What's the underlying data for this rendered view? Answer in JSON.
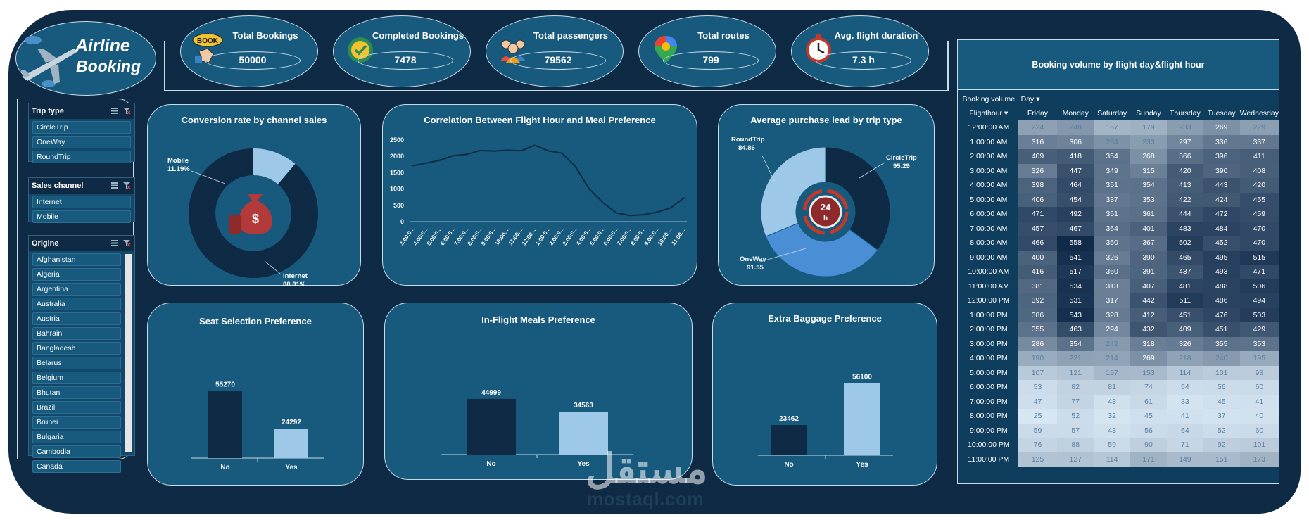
{
  "title": {
    "line1": "Airline",
    "line2": "Booking"
  },
  "logo_badge": "BOOK",
  "kpis": [
    {
      "label": "Total Bookings",
      "value": "50000",
      "icon": "book-hand-icon"
    },
    {
      "label": "Completed Bookings",
      "value": "7478",
      "icon": "check-badge-icon"
    },
    {
      "label": "Total passengers",
      "value": "79562",
      "icon": "people-icon"
    },
    {
      "label": "Total routes",
      "value": "799",
      "icon": "map-pin-icon"
    },
    {
      "label": "Avg. flight duration",
      "value": "7.3  h",
      "icon": "clock-icon"
    }
  ],
  "slicers": {
    "trip_type": {
      "header": "Trip type",
      "items": [
        "CircleTrip",
        "OneWay",
        "RoundTrip"
      ]
    },
    "sales_channel": {
      "header": "Sales channel",
      "items": [
        "Internet",
        "Mobile"
      ]
    },
    "origine": {
      "header": "Origine",
      "items": [
        "Afghanistan",
        "Algeria",
        "Argentina",
        "Australia",
        "Austria",
        "Bahrain",
        "Bangladesh",
        "Belarus",
        "Belgium",
        "Bhutan",
        "Brazil",
        "Brunei",
        "Bulgaria",
        "Cambodia",
        "Canada"
      ]
    }
  },
  "colors": {
    "frame": "#0e2a45",
    "panel": "#175a7d",
    "dark": "#0e2a45",
    "light": "#9ec8e8",
    "mid": "#4a8fd6",
    "accent": "#c0392b"
  },
  "watermark": {
    "arabic": "مستقل",
    "latin": "mostaql.com"
  },
  "chart_data": [
    {
      "type": "pie",
      "title": "Conversion rate by channel sales",
      "categories": [
        "Mobile",
        "Internet"
      ],
      "values": [
        11.19,
        88.81
      ],
      "labels": [
        "11.19%",
        "88.81%"
      ],
      "colors": [
        "#9ec8e8",
        "#0e2a45"
      ]
    },
    {
      "type": "line",
      "title": "Correlation Between Flight Hour and Meal Preference",
      "x": [
        "3:00:0...",
        "4:00:0...",
        "5:00:0...",
        "6:00:0...",
        "7:00:0...",
        "8:00:0...",
        "9:00:0...",
        "10:00:...",
        "11:00:...",
        "12:00:...",
        "1:00:0...",
        "2:00:0...",
        "3:00:0...",
        "4:00:0...",
        "5:00:0...",
        "6:00:0...",
        "7:00:0...",
        "8:00:0...",
        "9:00:0...",
        "10:00:...",
        "11:00:..."
      ],
      "values": [
        1710,
        1790,
        1880,
        2020,
        2060,
        2180,
        2160,
        2190,
        2170,
        2340,
        2170,
        2100,
        1690,
        1010,
        590,
        270,
        190,
        210,
        290,
        420,
        730
      ],
      "ylim": [
        0,
        2500
      ],
      "yticks": [
        0,
        500,
        1000,
        1500,
        2000,
        2500
      ]
    },
    {
      "type": "pie",
      "title": "Average purchase lead by trip type",
      "categories": [
        "CircleTrip",
        "OneWay",
        "RoundTrip"
      ],
      "values": [
        95.29,
        91.55,
        84.86
      ],
      "labels": [
        "95.29",
        "91.55",
        "84.86"
      ],
      "colors": [
        "#0e2a45",
        "#4a8fd6",
        "#9ec8e8"
      ]
    },
    {
      "type": "bar",
      "title": "Seat Selection Preference",
      "categories": [
        "No",
        "Yes"
      ],
      "values": [
        55270,
        24292
      ],
      "ylim": [
        0,
        58000
      ],
      "colors": [
        "#0e2a45",
        "#9ec8e8"
      ]
    },
    {
      "type": "bar",
      "title": "In-Flight Meals Preference",
      "categories": [
        "No",
        "Yes"
      ],
      "values": [
        44999,
        34563
      ],
      "ylim": [
        0,
        58000
      ],
      "colors": [
        "#0e2a45",
        "#9ec8e8"
      ]
    },
    {
      "type": "bar",
      "title": "Extra Baggage Preference",
      "categories": [
        "No",
        "Yes"
      ],
      "values": [
        23462,
        56100
      ],
      "ylim": [
        0,
        58000
      ],
      "colors": [
        "#0e2a45",
        "#9ec8e8"
      ]
    },
    {
      "type": "heatmap",
      "title": "Booking volume by flight day&flight hour",
      "corner_top": "Booking volume",
      "day_field": "Day",
      "hour_field": "Flighthour",
      "columns": [
        "Friday",
        "Monday",
        "Saturday",
        "Sunday",
        "Thursday",
        "Tuesday",
        "Wednesday"
      ],
      "rows": [
        "12:00:00 AM",
        "1:00:00 AM",
        "2:00:00 AM",
        "3:00:00 AM",
        "4:00:00 AM",
        "5:00:00 AM",
        "6:00:00 AM",
        "7:00:00 AM",
        "8:00:00 AM",
        "9:00:00 AM",
        "10:00:00 AM",
        "11:00:00 AM",
        "12:00:00 PM",
        "1:00:00 PM",
        "2:00:00 PM",
        "3:00:00 PM",
        "4:00:00 PM",
        "5:00:00 PM",
        "6:00:00 PM",
        "7:00:00 PM",
        "8:00:00 PM",
        "9:00:00 PM",
        "10:00:00 PM",
        "11:00:00 PM"
      ],
      "values": [
        [
          224,
          248,
          167,
          179,
          233,
          269,
          229
        ],
        [
          316,
          306,
          264,
          233,
          297,
          336,
          337
        ],
        [
          409,
          418,
          354,
          268,
          366,
          396,
          411
        ],
        [
          326,
          447,
          349,
          315,
          420,
          390,
          408
        ],
        [
          398,
          464,
          351,
          354,
          413,
          443,
          420
        ],
        [
          406,
          454,
          337,
          353,
          422,
          424,
          455
        ],
        [
          471,
          492,
          351,
          361,
          444,
          472,
          459
        ],
        [
          457,
          467,
          364,
          401,
          483,
          484,
          470
        ],
        [
          466,
          558,
          350,
          367,
          502,
          452,
          470
        ],
        [
          400,
          541,
          326,
          390,
          465,
          495,
          515
        ],
        [
          416,
          517,
          360,
          391,
          437,
          493,
          471
        ],
        [
          381,
          534,
          313,
          407,
          481,
          488,
          506
        ],
        [
          392,
          531,
          317,
          442,
          511,
          486,
          494
        ],
        [
          386,
          543,
          328,
          412,
          451,
          476,
          503
        ],
        [
          355,
          463,
          294,
          432,
          409,
          451,
          429
        ],
        [
          286,
          354,
          242,
          318,
          326,
          355,
          353
        ],
        [
          190,
          221,
          214,
          269,
          218,
          240,
          195
        ],
        [
          107,
          121,
          157,
          153,
          114,
          101,
          98
        ],
        [
          53,
          82,
          81,
          74,
          54,
          56,
          60
        ],
        [
          47,
          77,
          43,
          61,
          33,
          45,
          41
        ],
        [
          25,
          52,
          32,
          45,
          41,
          37,
          40
        ],
        [
          59,
          57,
          43,
          56,
          64,
          52,
          60
        ],
        [
          76,
          88,
          59,
          90,
          71,
          92,
          101
        ],
        [
          125,
          127,
          114,
          171,
          149,
          151,
          173
        ]
      ]
    }
  ]
}
